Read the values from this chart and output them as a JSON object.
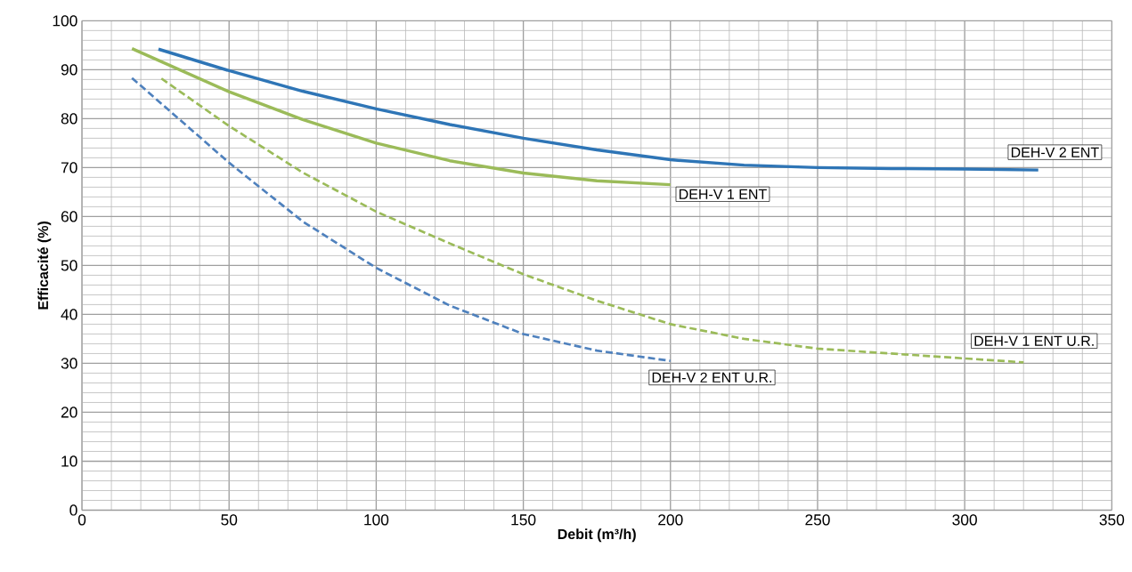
{
  "chart_data": {
    "type": "line",
    "xlabel": "Debit  (m³/h)",
    "ylabel": "Efficacité (%)",
    "xlim": [
      0,
      350
    ],
    "ylim": [
      0,
      100
    ],
    "xticks": [
      0,
      50,
      100,
      150,
      200,
      250,
      300,
      350
    ],
    "yticks": [
      0,
      10,
      20,
      30,
      40,
      50,
      60,
      70,
      80,
      90,
      100
    ],
    "grid": true,
    "legend": false,
    "marker": "none",
    "series": [
      {
        "name": "DEH-V 2 ENT",
        "color": "#2e75b6",
        "line_style": "solid",
        "x": [
          26,
          50,
          75,
          100,
          125,
          150,
          175,
          200,
          225,
          250,
          275,
          300,
          325
        ],
        "values": [
          94.2,
          89.8,
          85.6,
          82,
          78.8,
          76,
          73.6,
          71.6,
          70.5,
          70,
          69.8,
          69.7,
          69.5
        ]
      },
      {
        "name": "DEH-V 1 ENT",
        "color": "#9bbb59",
        "line_style": "solid",
        "x": [
          17,
          50,
          75,
          100,
          125,
          150,
          175,
          200
        ],
        "values": [
          94.3,
          85.5,
          79.8,
          75,
          71.4,
          68.9,
          67.3,
          66.5
        ]
      },
      {
        "name": "DEH-V 1 ENT U.R.",
        "color": "#9bbb59",
        "line_style": "dashed",
        "x": [
          27,
          50,
          75,
          100,
          125,
          150,
          175,
          200,
          225,
          250,
          275,
          300,
          320
        ],
        "values": [
          88.2,
          78.5,
          69,
          61,
          54.5,
          48.2,
          42.8,
          38,
          35,
          33,
          32,
          31,
          30.2
        ]
      },
      {
        "name": "DEH-V 2 ENT U.R.",
        "color": "#4f81bd",
        "line_style": "dashed",
        "x": [
          17,
          50,
          75,
          100,
          125,
          150,
          175,
          200
        ],
        "values": [
          88.3,
          71,
          59,
          49.5,
          41.8,
          36,
          32.6,
          30.5
        ]
      }
    ]
  }
}
